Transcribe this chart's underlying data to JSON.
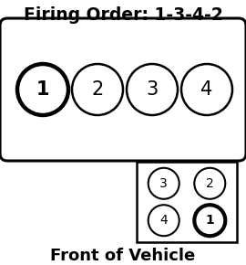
{
  "title": "Firing Order: 1-3-4-2",
  "footer": "Front of Vehicle",
  "bg_color": "#ffffff",
  "engine_cylinders": [
    1,
    2,
    3,
    4
  ],
  "engine_bold_circle": 1,
  "front_bold_label": "1",
  "front_labels": [
    "3",
    "2",
    "4",
    "1"
  ]
}
